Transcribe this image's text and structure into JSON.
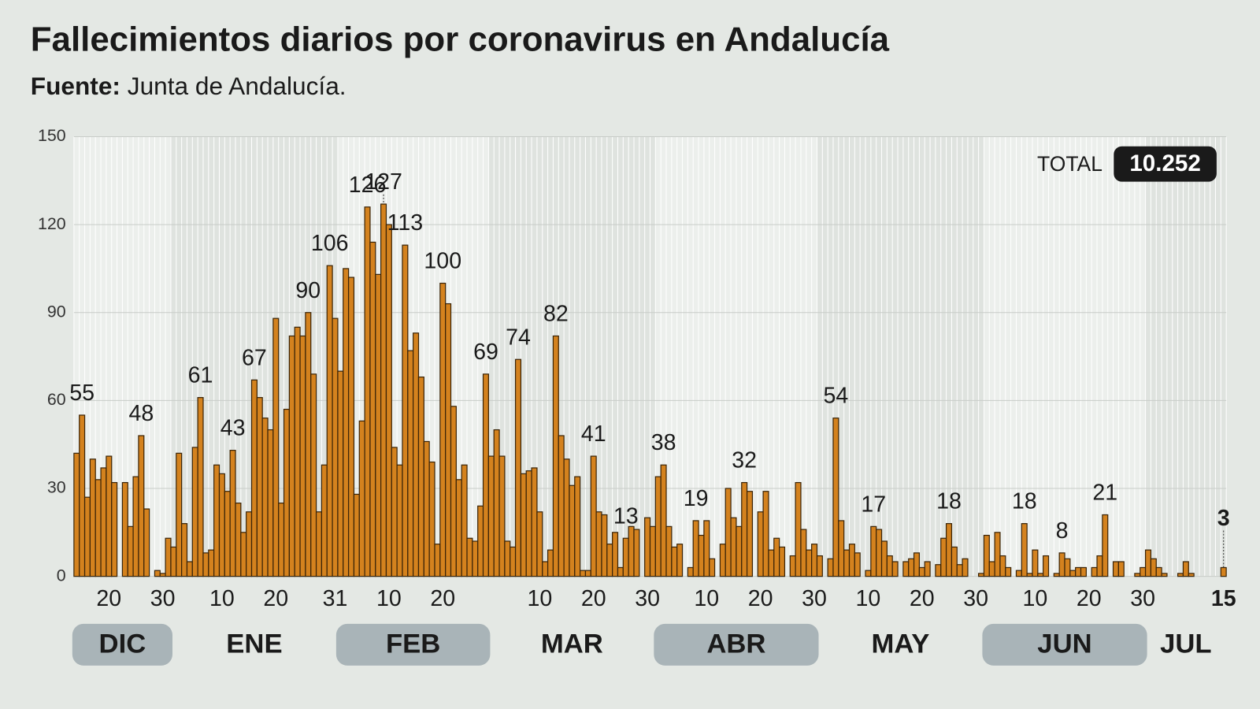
{
  "chart_data": {
    "type": "bar",
    "title": "Fallecimientos diarios por coronavirus en Andalucía",
    "source_label": "Fuente:",
    "source": "Junta de Andalucía.",
    "total_label": "TOTAL",
    "total": "10.252",
    "color": "#d4821e",
    "ylim": [
      0,
      150
    ],
    "yticks": [
      0,
      30,
      60,
      90,
      120,
      150
    ],
    "grid": true,
    "months": [
      {
        "label": "DIC",
        "shaded": true
      },
      {
        "label": "ENE",
        "shaded": false
      },
      {
        "label": "FEB",
        "shaded": true
      },
      {
        "label": "MAR",
        "shaded": false
      },
      {
        "label": "ABR",
        "shaded": true
      },
      {
        "label": "MAY",
        "shaded": false
      },
      {
        "label": "JUN",
        "shaded": true
      },
      {
        "label": "JUL",
        "shaded": false
      }
    ],
    "categories": [
      null,
      null,
      null,
      null,
      null,
      null,
      "20",
      null,
      null,
      null,
      null,
      null,
      null,
      null,
      null,
      null,
      "30",
      null,
      null,
      null,
      null,
      null,
      null,
      null,
      null,
      null,
      null,
      "10",
      null,
      null,
      null,
      null,
      null,
      null,
      null,
      null,
      null,
      "20",
      null,
      null,
      null,
      null,
      null,
      null,
      null,
      null,
      null,
      null,
      "31",
      null,
      null,
      null,
      null,
      null,
      null,
      null,
      null,
      null,
      "10",
      null,
      null,
      null,
      null,
      null,
      null,
      null,
      null,
      null,
      "20",
      null,
      null,
      null,
      null,
      null,
      null,
      null,
      null,
      null,
      null,
      null,
      null,
      null,
      null,
      null,
      null,
      null,
      "10",
      null,
      null,
      null,
      null,
      null,
      null,
      null,
      null,
      null,
      "20",
      null,
      null,
      null,
      null,
      null,
      null,
      null,
      null,
      null,
      "30",
      null,
      null,
      null,
      null,
      null,
      null,
      null,
      null,
      null,
      null,
      "10",
      null,
      null,
      null,
      null,
      null,
      null,
      null,
      null,
      null,
      "20",
      null,
      null,
      null,
      null,
      null,
      null,
      null,
      null,
      null,
      "30",
      null,
      null,
      null,
      null,
      null,
      null,
      null,
      null,
      null,
      "10",
      null,
      null,
      null,
      null,
      null,
      null,
      null,
      null,
      null,
      "20",
      null,
      null,
      null,
      null,
      null,
      null,
      null,
      null,
      null,
      "30",
      null,
      null,
      null,
      null,
      null,
      null,
      null,
      null,
      null,
      null,
      "10",
      null,
      null,
      null,
      null,
      null,
      null,
      null,
      null,
      null,
      "20",
      null,
      null,
      null,
      null,
      null,
      null,
      null,
      null,
      null,
      "30",
      null,
      null,
      null,
      null,
      null,
      null,
      null,
      null,
      null,
      null,
      null,
      null,
      null,
      null,
      "15"
    ],
    "values": [
      42,
      55,
      27,
      40,
      33,
      37,
      41,
      32,
      0,
      32,
      17,
      34,
      48,
      23,
      0,
      2,
      1,
      13,
      10,
      42,
      18,
      5,
      44,
      61,
      8,
      9,
      38,
      35,
      29,
      43,
      25,
      15,
      22,
      67,
      61,
      54,
      50,
      88,
      25,
      57,
      82,
      85,
      82,
      90,
      69,
      22,
      38,
      106,
      88,
      70,
      105,
      102,
      28,
      53,
      126,
      114,
      103,
      127,
      120,
      44,
      38,
      113,
      77,
      83,
      68,
      46,
      39,
      11,
      100,
      93,
      58,
      33,
      38,
      13,
      12,
      24,
      69,
      41,
      50,
      41,
      12,
      10,
      74,
      35,
      36,
      37,
      22,
      5,
      9,
      82,
      48,
      40,
      31,
      34,
      2,
      2,
      41,
      22,
      21,
      11,
      15,
      3,
      13,
      17,
      16,
      0,
      20,
      17,
      34,
      38,
      17,
      10,
      11,
      0,
      3,
      19,
      14,
      19,
      6,
      0,
      11,
      30,
      20,
      17,
      32,
      29,
      0,
      22,
      29,
      9,
      13,
      10,
      0,
      7,
      32,
      16,
      9,
      11,
      7,
      0,
      6,
      54,
      19,
      9,
      11,
      8,
      0,
      2,
      17,
      16,
      12,
      7,
      5,
      0,
      5,
      6,
      8,
      3,
      5,
      0,
      4,
      13,
      18,
      10,
      4,
      6,
      0,
      0,
      1,
      14,
      5,
      15,
      7,
      3,
      0,
      2,
      18,
      1,
      9,
      1,
      7,
      0,
      1,
      8,
      6,
      2,
      3,
      3,
      0,
      3,
      7,
      21,
      0,
      5,
      5,
      0,
      0,
      1,
      3,
      9,
      6,
      3,
      1,
      0,
      0,
      1,
      5,
      1,
      0,
      0,
      0,
      0,
      0,
      3
    ],
    "value_labels": [
      null,
      "55",
      null,
      null,
      null,
      null,
      null,
      null,
      null,
      null,
      null,
      null,
      "48",
      null,
      null,
      null,
      null,
      null,
      null,
      null,
      null,
      null,
      null,
      "61",
      null,
      null,
      null,
      null,
      null,
      "43",
      null,
      null,
      null,
      "67",
      null,
      null,
      null,
      null,
      null,
      null,
      null,
      null,
      null,
      "90",
      null,
      null,
      null,
      "106",
      null,
      null,
      null,
      null,
      null,
      null,
      "126",
      null,
      null,
      "127",
      null,
      null,
      null,
      "113",
      null,
      null,
      null,
      null,
      null,
      null,
      "100",
      null,
      null,
      null,
      null,
      null,
      null,
      null,
      "69",
      null,
      null,
      null,
      null,
      null,
      "74",
      null,
      null,
      null,
      null,
      null,
      null,
      "82",
      null,
      null,
      null,
      null,
      null,
      null,
      "41",
      null,
      null,
      null,
      null,
      null,
      "13",
      null,
      null,
      null,
      null,
      null,
      null,
      "38",
      null,
      null,
      null,
      null,
      null,
      "19",
      null,
      null,
      null,
      null,
      null,
      null,
      null,
      null,
      "32",
      null,
      null,
      null,
      null,
      null,
      null,
      null,
      null,
      null,
      null,
      null,
      null,
      null,
      null,
      null,
      null,
      "54",
      null,
      null,
      null,
      null,
      null,
      null,
      "17",
      null,
      null,
      null,
      null,
      null,
      null,
      null,
      null,
      null,
      null,
      null,
      null,
      null,
      "18",
      null,
      null,
      null,
      null,
      null,
      null,
      null,
      null,
      null,
      null,
      null,
      null,
      null,
      "18",
      null,
      null,
      null,
      null,
      null,
      null,
      "8",
      null,
      null,
      null,
      null,
      null,
      null,
      null,
      "21",
      null,
      null,
      null,
      null,
      null,
      null,
      null,
      null,
      null,
      null,
      null,
      null,
      null,
      null,
      null,
      null,
      null,
      null,
      null,
      null,
      null,
      "3"
    ]
  }
}
